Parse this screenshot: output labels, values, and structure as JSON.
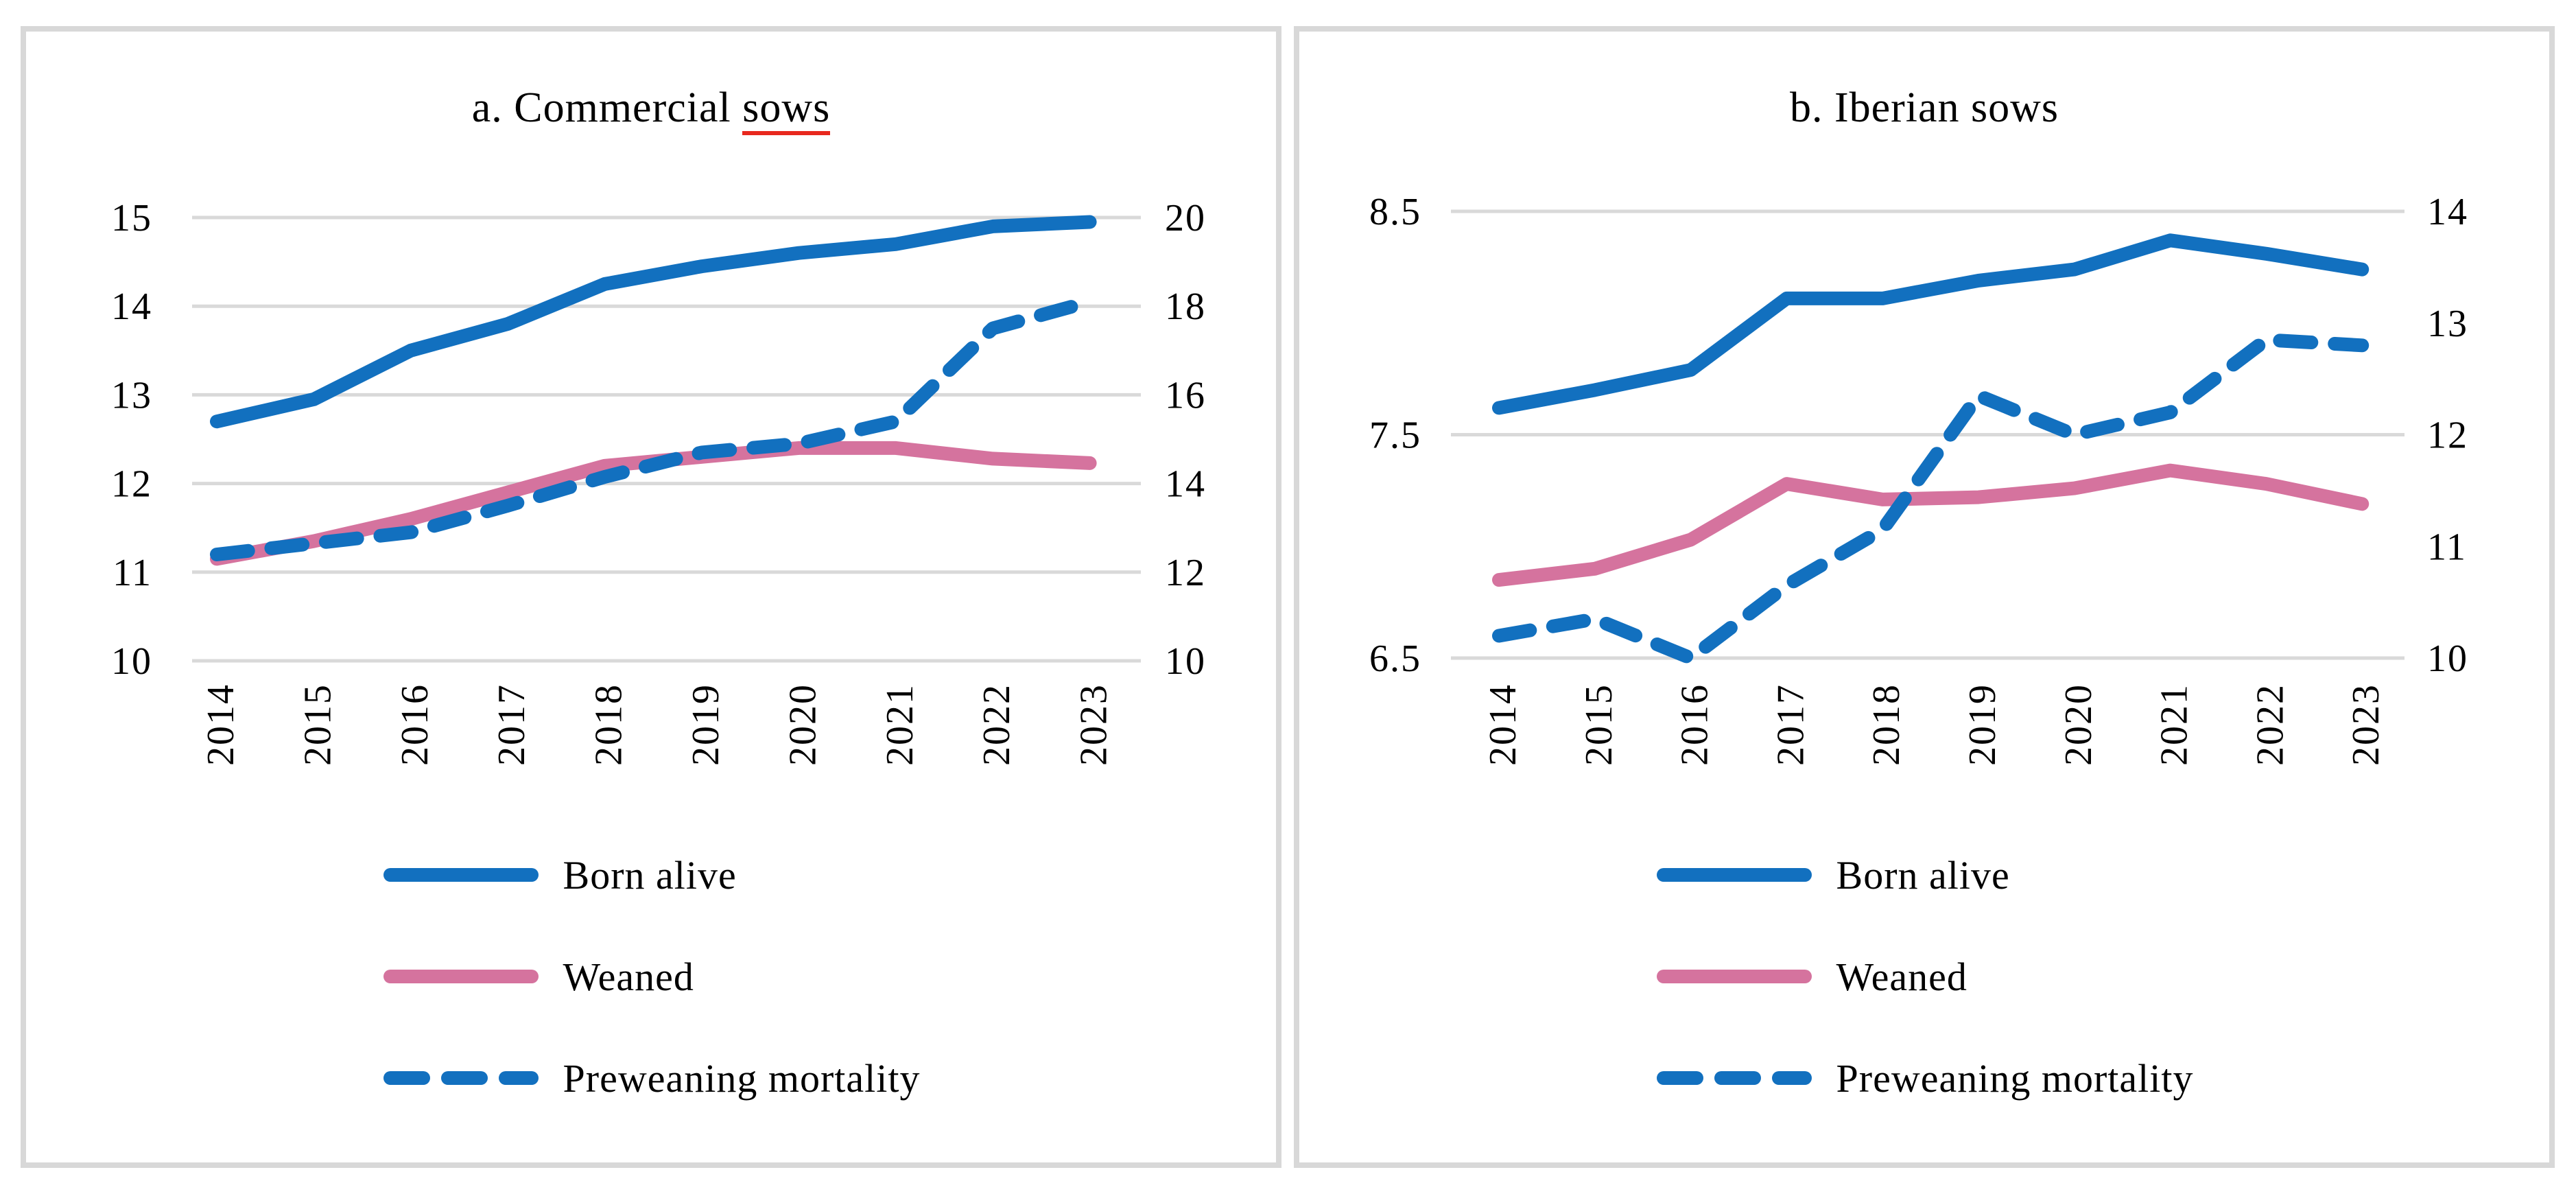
{
  "colors": {
    "blue": "#1270bf",
    "pink": "#d5739e",
    "gridline": "#d9d9d9",
    "panel_border": "#d8d8d8",
    "spellcheck_underline": "#e8281e",
    "text": "#000000"
  },
  "chart_data": [
    {
      "type": "line",
      "panel": "a",
      "title": "a. Commercial sows",
      "title_main": "a. Commercial ",
      "title_spellchecked": "sows",
      "categories": [
        "2014",
        "2015",
        "2016",
        "2017",
        "2018",
        "2019",
        "2020",
        "2021",
        "2022",
        "2023"
      ],
      "left_axis": {
        "min": 10,
        "max": 15,
        "ticks": [
          {
            "label": "15",
            "value": 15
          },
          {
            "label": "14",
            "value": 14
          },
          {
            "label": "13",
            "value": 13
          },
          {
            "label": "12",
            "value": 12
          },
          {
            "label": "11",
            "value": 11
          },
          {
            "label": "10",
            "value": 10
          }
        ],
        "gridlines": [
          15,
          14,
          13,
          12,
          11,
          10
        ]
      },
      "right_axis": {
        "min": 10,
        "max": 20,
        "ticks": [
          {
            "label": "20",
            "value": 20
          },
          {
            "label": "18",
            "value": 18
          },
          {
            "label": "16",
            "value": 16
          },
          {
            "label": "14",
            "value": 14
          },
          {
            "label": "12",
            "value": 12
          },
          {
            "label": "10",
            "value": 10
          }
        ]
      },
      "series": [
        {
          "name": "Born alive",
          "axis": "left",
          "style": "solid",
          "color": "#1270bf",
          "values": [
            12.7,
            12.95,
            13.5,
            13.8,
            14.25,
            14.45,
            14.6,
            14.7,
            14.9,
            14.95
          ]
        },
        {
          "name": "Weaned",
          "axis": "left",
          "style": "solid",
          "color": "#d5739e",
          "values": [
            11.15,
            11.35,
            11.6,
            11.9,
            12.2,
            12.3,
            12.4,
            12.4,
            12.28,
            12.23
          ]
        },
        {
          "name": "Preweaning mortality",
          "axis": "right",
          "style": "dashed",
          "color": "#1270bf",
          "values": [
            12.4,
            12.65,
            12.9,
            13.5,
            14.15,
            14.7,
            14.9,
            15.4,
            17.5,
            18.1
          ]
        }
      ],
      "legend_position": "bottom"
    },
    {
      "type": "line",
      "panel": "b",
      "title": "b. Iberian sows",
      "title_main": "b. Iberian sows",
      "title_spellchecked": "",
      "categories": [
        "2014",
        "2015",
        "2016",
        "2017",
        "2018",
        "2019",
        "2020",
        "2021",
        "2022",
        "2023"
      ],
      "left_axis": {
        "min": 6.5,
        "max": 8.5,
        "ticks": [
          {
            "label": "8.5",
            "value": 8.5
          },
          {
            "label": "7.5",
            "value": 7.5
          },
          {
            "label": "6.5",
            "value": 6.5
          }
        ],
        "gridlines": [
          8.5,
          7.5,
          6.5
        ]
      },
      "right_axis": {
        "min": 10,
        "max": 14,
        "ticks": [
          {
            "label": "14",
            "value": 14
          },
          {
            "label": "13",
            "value": 13
          },
          {
            "label": "12",
            "value": 12
          },
          {
            "label": "11",
            "value": 11
          },
          {
            "label": "10",
            "value": 10
          }
        ]
      },
      "series": [
        {
          "name": "Born alive",
          "axis": "left",
          "style": "solid",
          "color": "#1270bf",
          "values": [
            7.62,
            7.7,
            7.79,
            8.11,
            8.11,
            8.19,
            8.24,
            8.37,
            8.31,
            8.24
          ]
        },
        {
          "name": "Weaned",
          "axis": "left",
          "style": "solid",
          "color": "#d5739e",
          "values": [
            6.85,
            6.9,
            7.03,
            7.28,
            7.21,
            7.22,
            7.26,
            7.34,
            7.28,
            7.19
          ]
        },
        {
          "name": "Preweaning mortality",
          "axis": "right",
          "style": "dashed",
          "color": "#1270bf",
          "values": [
            10.2,
            10.35,
            10.0,
            10.65,
            11.15,
            12.35,
            12.0,
            12.2,
            12.85,
            12.8
          ]
        }
      ],
      "legend_position": "bottom"
    }
  ]
}
